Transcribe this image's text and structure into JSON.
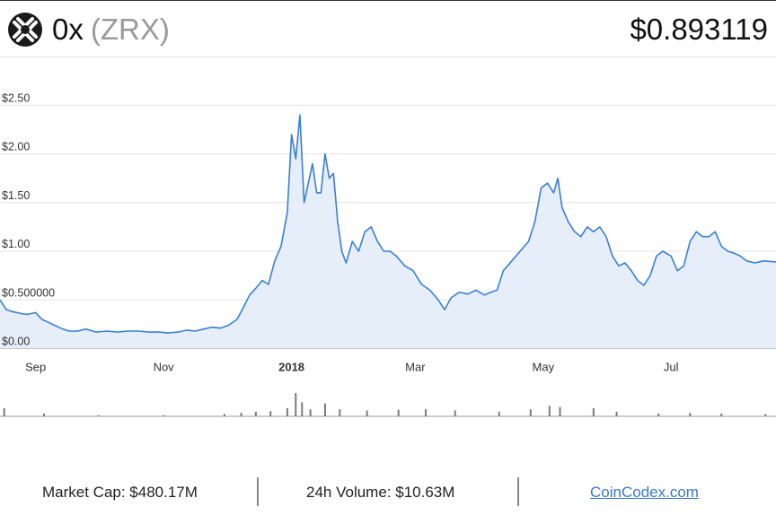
{
  "header": {
    "logo_icon": "0x-logo-icon",
    "coin_name": "0x",
    "coin_symbol": "(ZRX)",
    "price": "$0.893119"
  },
  "chart_data": {
    "type": "area",
    "title": "",
    "xlabel": "",
    "ylabel": "",
    "ylim": [
      0,
      2.5
    ],
    "y_ticks": [
      {
        "value": 0,
        "label": "$0.00"
      },
      {
        "value": 0.5,
        "label": "$0.500000"
      },
      {
        "value": 1.0,
        "label": "$1.00"
      },
      {
        "value": 1.5,
        "label": "$1.50"
      },
      {
        "value": 2.0,
        "label": "$2.00"
      },
      {
        "value": 2.5,
        "label": "$2.50"
      }
    ],
    "x_range": [
      "2017-08-15",
      "2018-08-20"
    ],
    "x_ticks": [
      {
        "date": "2017-09-01",
        "label": "Sep",
        "bold": false
      },
      {
        "date": "2017-11-01",
        "label": "Nov",
        "bold": false
      },
      {
        "date": "2018-01-01",
        "label": "2018",
        "bold": true
      },
      {
        "date": "2018-03-01",
        "label": "Mar",
        "bold": false
      },
      {
        "date": "2018-05-01",
        "label": "May",
        "bold": false
      },
      {
        "date": "2018-07-01",
        "label": "Jul",
        "bold": false
      }
    ],
    "grid": true,
    "line_color": "#3a7fd5",
    "fill_color": "#e6eef9",
    "volume_color": "#7a7a7a",
    "series": [
      {
        "values": [
          [
            "2017-08-15",
            0.5
          ],
          [
            "2017-08-18",
            0.4
          ],
          [
            "2017-08-21",
            0.38
          ],
          [
            "2017-08-25",
            0.36
          ],
          [
            "2017-08-28",
            0.35
          ],
          [
            "2017-09-01",
            0.37
          ],
          [
            "2017-09-04",
            0.3
          ],
          [
            "2017-09-07",
            0.27
          ],
          [
            "2017-09-10",
            0.24
          ],
          [
            "2017-09-14",
            0.2
          ],
          [
            "2017-09-17",
            0.18
          ],
          [
            "2017-09-21",
            0.18
          ],
          [
            "2017-09-25",
            0.2
          ],
          [
            "2017-09-30",
            0.17
          ],
          [
            "2017-10-05",
            0.18
          ],
          [
            "2017-10-10",
            0.17
          ],
          [
            "2017-10-15",
            0.18
          ],
          [
            "2017-10-20",
            0.18
          ],
          [
            "2017-10-25",
            0.17
          ],
          [
            "2017-10-30",
            0.17
          ],
          [
            "2017-11-03",
            0.16
          ],
          [
            "2017-11-08",
            0.17
          ],
          [
            "2017-11-12",
            0.19
          ],
          [
            "2017-11-16",
            0.18
          ],
          [
            "2017-11-20",
            0.2
          ],
          [
            "2017-11-24",
            0.22
          ],
          [
            "2017-11-28",
            0.21
          ],
          [
            "2017-12-02",
            0.24
          ],
          [
            "2017-12-06",
            0.3
          ],
          [
            "2017-12-09",
            0.42
          ],
          [
            "2017-12-12",
            0.55
          ],
          [
            "2017-12-15",
            0.62
          ],
          [
            "2017-12-18",
            0.7
          ],
          [
            "2017-12-21",
            0.66
          ],
          [
            "2017-12-24",
            0.9
          ],
          [
            "2017-12-27",
            1.05
          ],
          [
            "2017-12-30",
            1.4
          ],
          [
            "2018-01-01",
            2.2
          ],
          [
            "2018-01-03",
            1.95
          ],
          [
            "2018-01-05",
            2.4
          ],
          [
            "2018-01-07",
            1.5
          ],
          [
            "2018-01-09",
            1.7
          ],
          [
            "2018-01-11",
            1.9
          ],
          [
            "2018-01-13",
            1.6
          ],
          [
            "2018-01-15",
            1.6
          ],
          [
            "2018-01-17",
            2.0
          ],
          [
            "2018-01-19",
            1.75
          ],
          [
            "2018-01-21",
            1.8
          ],
          [
            "2018-01-23",
            1.3
          ],
          [
            "2018-01-25",
            1.0
          ],
          [
            "2018-01-27",
            0.88
          ],
          [
            "2018-01-30",
            1.1
          ],
          [
            "2018-02-02",
            1.0
          ],
          [
            "2018-02-05",
            1.2
          ],
          [
            "2018-02-08",
            1.25
          ],
          [
            "2018-02-11",
            1.1
          ],
          [
            "2018-02-14",
            1.0
          ],
          [
            "2018-02-17",
            1.0
          ],
          [
            "2018-02-20",
            0.95
          ],
          [
            "2018-02-24",
            0.85
          ],
          [
            "2018-02-28",
            0.8
          ],
          [
            "2018-03-04",
            0.66
          ],
          [
            "2018-03-08",
            0.6
          ],
          [
            "2018-03-12",
            0.5
          ],
          [
            "2018-03-15",
            0.4
          ],
          [
            "2018-03-18",
            0.52
          ],
          [
            "2018-03-22",
            0.58
          ],
          [
            "2018-03-26",
            0.56
          ],
          [
            "2018-03-30",
            0.6
          ],
          [
            "2018-04-03",
            0.55
          ],
          [
            "2018-04-06",
            0.58
          ],
          [
            "2018-04-09",
            0.6
          ],
          [
            "2018-04-12",
            0.8
          ],
          [
            "2018-04-16",
            0.9
          ],
          [
            "2018-04-20",
            1.0
          ],
          [
            "2018-04-24",
            1.1
          ],
          [
            "2018-04-27",
            1.3
          ],
          [
            "2018-04-30",
            1.65
          ],
          [
            "2018-05-03",
            1.7
          ],
          [
            "2018-05-06",
            1.6
          ],
          [
            "2018-05-08",
            1.75
          ],
          [
            "2018-05-10",
            1.45
          ],
          [
            "2018-05-13",
            1.3
          ],
          [
            "2018-05-16",
            1.2
          ],
          [
            "2018-05-19",
            1.15
          ],
          [
            "2018-05-22",
            1.25
          ],
          [
            "2018-05-25",
            1.2
          ],
          [
            "2018-05-28",
            1.25
          ],
          [
            "2018-05-31",
            1.15
          ],
          [
            "2018-06-03",
            0.95
          ],
          [
            "2018-06-06",
            0.85
          ],
          [
            "2018-06-09",
            0.88
          ],
          [
            "2018-06-12",
            0.8
          ],
          [
            "2018-06-15",
            0.7
          ],
          [
            "2018-06-18",
            0.65
          ],
          [
            "2018-06-21",
            0.75
          ],
          [
            "2018-06-24",
            0.95
          ],
          [
            "2018-06-27",
            1.0
          ],
          [
            "2018-07-01",
            0.95
          ],
          [
            "2018-07-04",
            0.8
          ],
          [
            "2018-07-07",
            0.85
          ],
          [
            "2018-07-10",
            1.1
          ],
          [
            "2018-07-13",
            1.2
          ],
          [
            "2018-07-16",
            1.15
          ],
          [
            "2018-07-19",
            1.15
          ],
          [
            "2018-07-22",
            1.2
          ],
          [
            "2018-07-25",
            1.05
          ],
          [
            "2018-07-28",
            1.0
          ],
          [
            "2018-07-31",
            0.98
          ],
          [
            "2018-08-03",
            0.95
          ],
          [
            "2018-08-06",
            0.9
          ],
          [
            "2018-08-10",
            0.88
          ],
          [
            "2018-08-14",
            0.9
          ],
          [
            "2018-08-20",
            0.89
          ]
        ]
      }
    ],
    "volume": [
      [
        "2017-08-17",
        0.35
      ],
      [
        "2017-09-05",
        0.12
      ],
      [
        "2017-10-01",
        0.05
      ],
      [
        "2017-11-01",
        0.05
      ],
      [
        "2017-11-30",
        0.1
      ],
      [
        "2017-12-08",
        0.15
      ],
      [
        "2017-12-15",
        0.2
      ],
      [
        "2017-12-22",
        0.22
      ],
      [
        "2017-12-30",
        0.35
      ],
      [
        "2018-01-03",
        1.0
      ],
      [
        "2018-01-06",
        0.6
      ],
      [
        "2018-01-10",
        0.3
      ],
      [
        "2018-01-17",
        0.55
      ],
      [
        "2018-01-24",
        0.3
      ],
      [
        "2018-02-06",
        0.25
      ],
      [
        "2018-02-21",
        0.28
      ],
      [
        "2018-03-06",
        0.3
      ],
      [
        "2018-03-20",
        0.25
      ],
      [
        "2018-04-10",
        0.2
      ],
      [
        "2018-04-25",
        0.3
      ],
      [
        "2018-05-04",
        0.45
      ],
      [
        "2018-05-09",
        0.4
      ],
      [
        "2018-05-25",
        0.35
      ],
      [
        "2018-06-05",
        0.2
      ],
      [
        "2018-06-25",
        0.12
      ],
      [
        "2018-07-10",
        0.15
      ],
      [
        "2018-07-25",
        0.12
      ],
      [
        "2018-08-15",
        0.1
      ]
    ]
  },
  "footer": {
    "market_cap": "Market Cap: $480.17M",
    "volume_24h": "24h Volume: $10.63M",
    "source_link": "CoinCodex.com"
  }
}
